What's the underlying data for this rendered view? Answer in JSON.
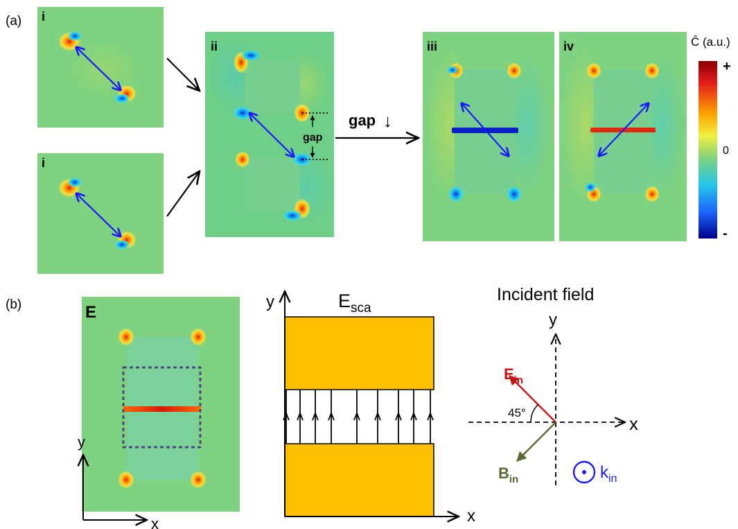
{
  "panel_a": {
    "label": "(a)",
    "tile_labels": {
      "i_top": "i",
      "i_bottom": "i",
      "ii": "ii",
      "iii": "iii",
      "iv": "iv"
    },
    "gap_label": "gap",
    "gap_arrow_label": "gap",
    "gap_arrow_symbol": "↓",
    "colorbar": {
      "title": "Ĉ (a.u.)",
      "max_label": "+",
      "mid_label": "0",
      "min_label": "-"
    }
  },
  "panel_b": {
    "label": "(b)",
    "field_label": "E",
    "field_axes": {
      "x": "x",
      "y": "y"
    },
    "esca_title_main": "E",
    "esca_title_sub": "sca",
    "esca_axes": {
      "x": "x",
      "y": "y"
    },
    "incident_title": "Incident field",
    "incident_axes": {
      "x": "x",
      "y": "y"
    },
    "angle_label": "45°",
    "e_in_main": "E",
    "e_in_sub": "in",
    "b_in_main": "B",
    "b_in_sub": "in",
    "k_in_main": "k",
    "k_in_sub": "in"
  },
  "colors": {
    "background_field": "#7fd27f",
    "arrow_blue": "#1a1aff",
    "bar_blue": "#0a1fc8",
    "bar_red": "#e02810",
    "gold": "#ffbf00",
    "e_in_red": "#c81414",
    "b_in_olive": "#556b2f",
    "k_in_blue": "#1a1aff",
    "dashed_box": "#4a4a7a"
  }
}
